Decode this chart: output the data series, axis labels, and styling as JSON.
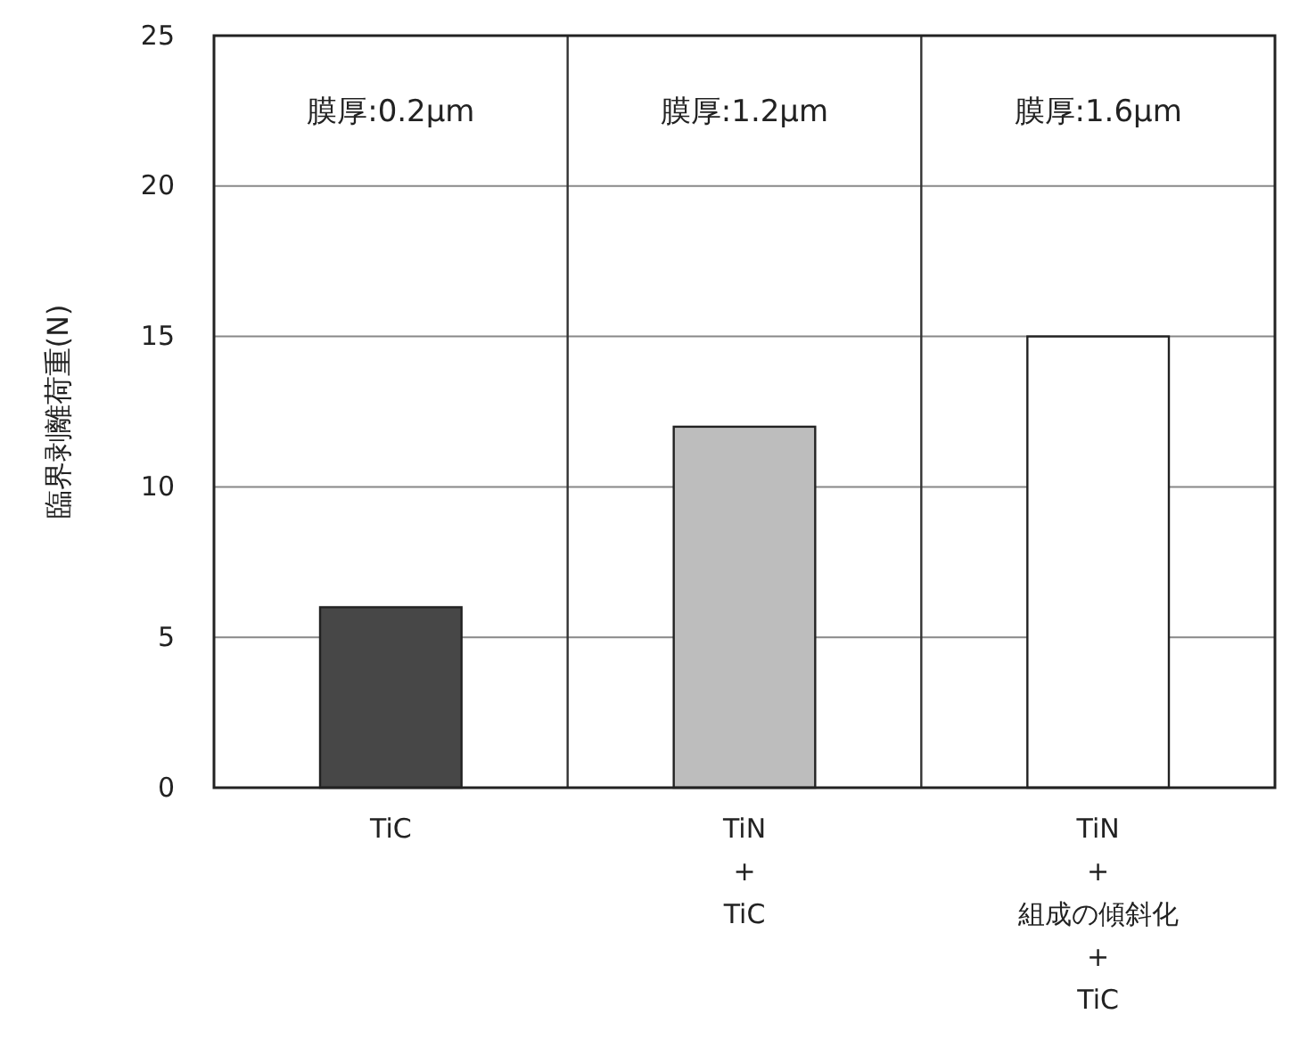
{
  "chart_data": {
    "type": "bar",
    "ylabel": "臨界剥離荷重(N)",
    "categories": [
      "TiC",
      "TiN\n+\nTiC",
      "TiN\n+\n組成の傾斜化\n+\nTiC"
    ],
    "values": [
      6,
      12,
      15
    ],
    "colors": [
      "#474747",
      "#bdbdbd",
      "#ffffff"
    ],
    "ylim": [
      0,
      25
    ],
    "yticks": [
      0,
      5,
      10,
      15,
      20,
      25
    ],
    "grid": true,
    "annotations": [
      "膜厚:0.2μm",
      "膜厚:1.2μm",
      "膜厚:1.6μm"
    ]
  }
}
